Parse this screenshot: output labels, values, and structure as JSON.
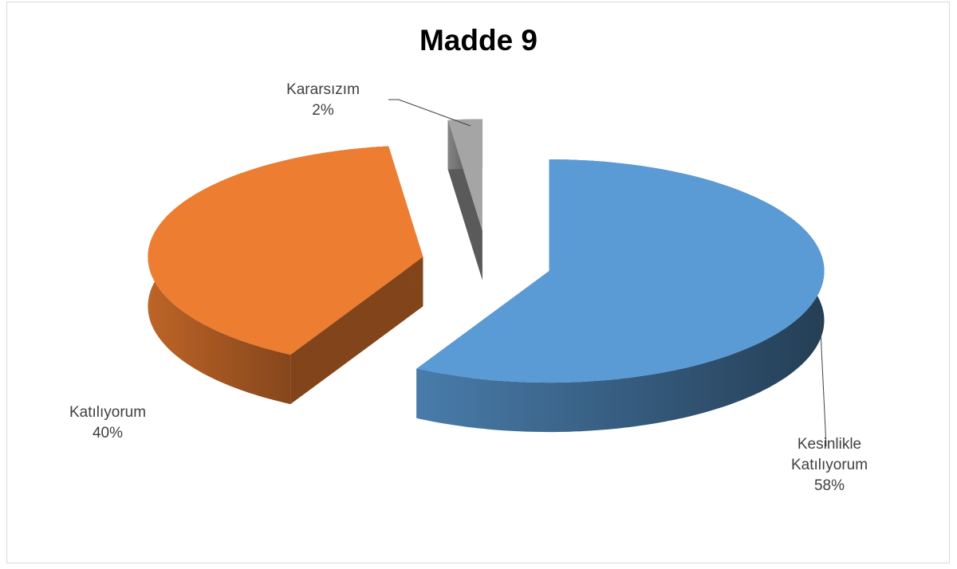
{
  "chart_data": {
    "type": "pie",
    "title": "Madde 9",
    "categories": [
      "Kesinlikle Katılıyorum",
      "Katılıyorum",
      "Kararsızım"
    ],
    "values": [
      58,
      40,
      2
    ],
    "value_labels": [
      "58%",
      "40%",
      "2%"
    ],
    "colors": [
      "#5b9bd5",
      "#ed7d31",
      "#a5a5a5"
    ]
  }
}
